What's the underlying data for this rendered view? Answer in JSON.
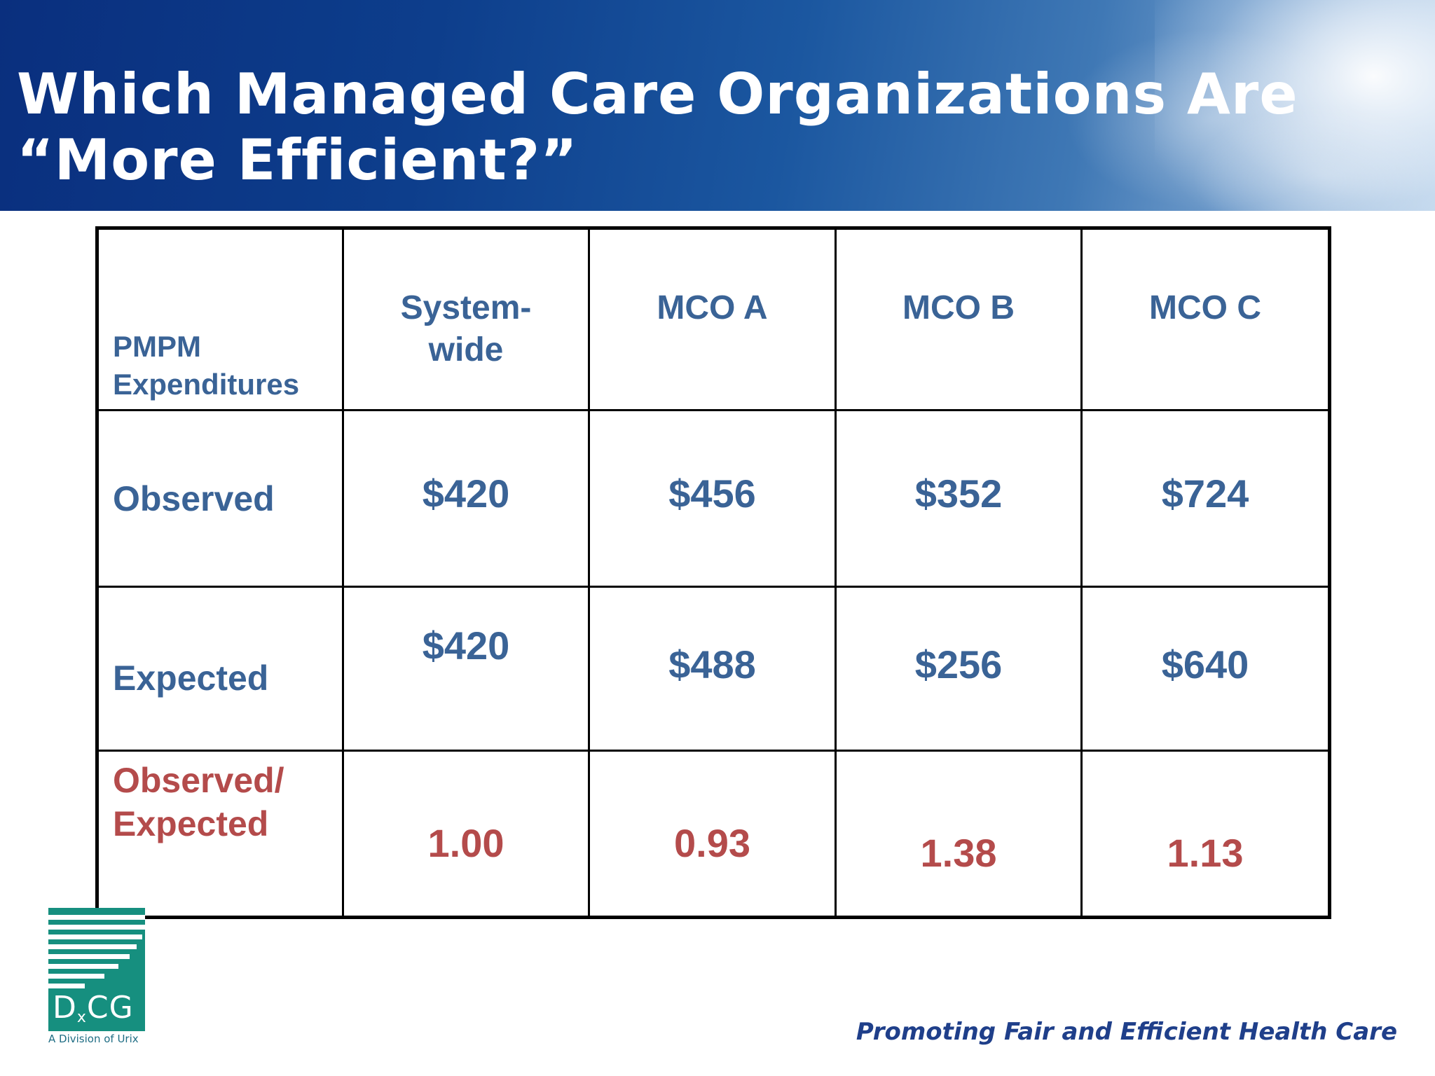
{
  "slide": {
    "title_line1": "Which Managed Care Organizations Are",
    "title_line2": "“More Efficient?”"
  },
  "table": {
    "corner_label": "PMPM\nExpenditures",
    "corner_label_line1": "PMPM",
    "corner_label_line2": "Expenditures",
    "columns": [
      "System-wide",
      "MCO A",
      "MCO B",
      "MCO C"
    ],
    "column_lines": [
      [
        "System-",
        "wide"
      ],
      [
        "MCO A"
      ],
      [
        "MCO B"
      ],
      [
        "MCO C"
      ]
    ],
    "rows": [
      {
        "label": "Observed",
        "values": [
          "$420",
          "$456",
          "$352",
          "$724"
        ]
      },
      {
        "label": "Expected",
        "values": [
          "$420",
          "$488",
          "$256",
          "$640"
        ]
      },
      {
        "label": "Observed/ Expected",
        "label_line1": "Observed/",
        "label_line2": "Expected",
        "values": [
          "1.00",
          "0.93",
          "1.38",
          "1.13"
        ]
      }
    ]
  },
  "logo": {
    "mark": "DxCG",
    "mark_main_1": "D",
    "mark_sub": "x",
    "mark_main_2": "CG",
    "tagline": "A Division of Urix"
  },
  "footer": {
    "slogan": "Promoting Fair and Efficient Health Care"
  },
  "colors": {
    "banner_dark": "#0a2f7e",
    "banner_light": "#c8dcef",
    "table_text": "#3a6396",
    "ratio_text": "#b44b4b",
    "logo_green": "#168f7f",
    "slogan_blue": "#1f3f8a"
  }
}
